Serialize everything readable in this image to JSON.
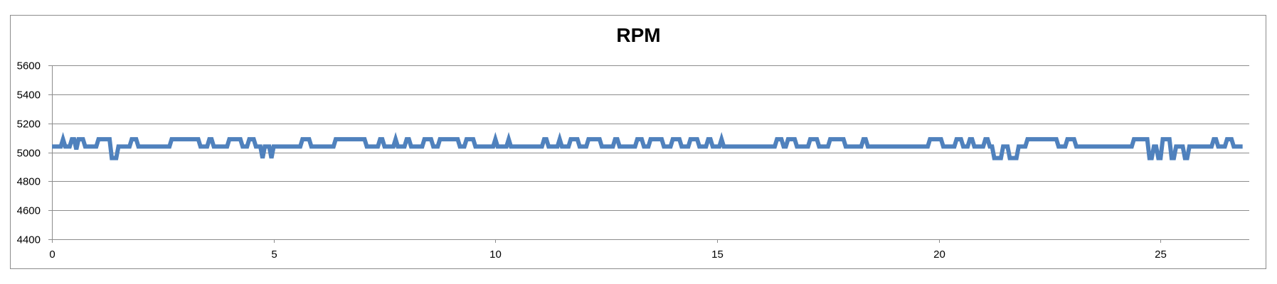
{
  "chart_data": {
    "type": "line",
    "title": "RPM",
    "xlabel": "",
    "ylabel": "",
    "xlim": [
      0,
      27
    ],
    "ylim": [
      4400,
      5600
    ],
    "x_ticks": [
      0,
      5,
      10,
      15,
      20,
      25
    ],
    "y_ticks": [
      4400,
      4600,
      4800,
      5000,
      5200,
      5400,
      5600
    ],
    "grid": "horizontal",
    "legend": "none",
    "series_color": "#4f81bd",
    "step_size": 0.05,
    "series": [
      {
        "segments": [
          [
            0.0,
            0.25,
            5040
          ],
          [
            0.25,
            0.3,
            5090
          ],
          [
            0.3,
            0.45,
            5040
          ],
          [
            0.45,
            0.55,
            5090
          ],
          [
            0.55,
            0.6,
            5020
          ],
          [
            0.6,
            0.75,
            5090
          ],
          [
            0.75,
            1.05,
            5040
          ],
          [
            1.05,
            1.35,
            5090
          ],
          [
            1.35,
            1.5,
            4960
          ],
          [
            1.5,
            1.8,
            5040
          ],
          [
            1.8,
            1.95,
            5090
          ],
          [
            1.95,
            2.7,
            5040
          ],
          [
            2.7,
            3.35,
            5090
          ],
          [
            3.35,
            3.55,
            5040
          ],
          [
            3.55,
            3.65,
            5090
          ],
          [
            3.65,
            4.0,
            5040
          ],
          [
            4.0,
            4.3,
            5090
          ],
          [
            4.3,
            4.45,
            5040
          ],
          [
            4.45,
            4.6,
            5090
          ],
          [
            4.6,
            4.75,
            5040
          ],
          [
            4.75,
            4.8,
            4960
          ],
          [
            4.8,
            4.95,
            5040
          ],
          [
            4.95,
            5.0,
            4960
          ],
          [
            5.0,
            5.65,
            5040
          ],
          [
            5.65,
            5.85,
            5090
          ],
          [
            5.85,
            6.4,
            5040
          ],
          [
            6.4,
            7.1,
            5090
          ],
          [
            7.1,
            7.4,
            5040
          ],
          [
            7.4,
            7.5,
            5090
          ],
          [
            7.5,
            7.75,
            5040
          ],
          [
            7.75,
            7.8,
            5090
          ],
          [
            7.8,
            8.0,
            5040
          ],
          [
            8.0,
            8.1,
            5090
          ],
          [
            8.1,
            8.4,
            5040
          ],
          [
            8.4,
            8.6,
            5090
          ],
          [
            8.6,
            8.75,
            5040
          ],
          [
            8.75,
            9.2,
            5090
          ],
          [
            9.2,
            9.35,
            5040
          ],
          [
            9.35,
            9.55,
            5090
          ],
          [
            9.55,
            10.0,
            5040
          ],
          [
            10.0,
            10.05,
            5090
          ],
          [
            10.05,
            10.3,
            5040
          ],
          [
            10.3,
            10.35,
            5090
          ],
          [
            10.35,
            11.1,
            5040
          ],
          [
            11.1,
            11.2,
            5090
          ],
          [
            11.2,
            11.45,
            5040
          ],
          [
            11.45,
            11.5,
            5090
          ],
          [
            11.5,
            11.7,
            5040
          ],
          [
            11.7,
            11.9,
            5090
          ],
          [
            11.9,
            12.1,
            5040
          ],
          [
            12.1,
            12.4,
            5090
          ],
          [
            12.4,
            12.7,
            5040
          ],
          [
            12.7,
            12.8,
            5090
          ],
          [
            12.8,
            13.2,
            5040
          ],
          [
            13.2,
            13.35,
            5090
          ],
          [
            13.35,
            13.5,
            5040
          ],
          [
            13.5,
            13.8,
            5090
          ],
          [
            13.8,
            14.0,
            5040
          ],
          [
            14.0,
            14.2,
            5090
          ],
          [
            14.2,
            14.4,
            5040
          ],
          [
            14.4,
            14.6,
            5090
          ],
          [
            14.6,
            14.8,
            5040
          ],
          [
            14.8,
            14.9,
            5090
          ],
          [
            14.9,
            15.1,
            5040
          ],
          [
            15.1,
            15.15,
            5090
          ],
          [
            15.15,
            16.35,
            5040
          ],
          [
            16.35,
            16.5,
            5090
          ],
          [
            16.5,
            16.6,
            5040
          ],
          [
            16.6,
            16.8,
            5090
          ],
          [
            16.8,
            17.1,
            5040
          ],
          [
            17.1,
            17.3,
            5090
          ],
          [
            17.3,
            17.55,
            5040
          ],
          [
            17.55,
            17.9,
            5090
          ],
          [
            17.9,
            18.3,
            5040
          ],
          [
            18.3,
            18.4,
            5090
          ],
          [
            18.4,
            19.8,
            5040
          ],
          [
            19.8,
            20.1,
            5090
          ],
          [
            20.1,
            20.4,
            5040
          ],
          [
            20.4,
            20.55,
            5090
          ],
          [
            20.55,
            20.7,
            5040
          ],
          [
            20.7,
            20.8,
            5090
          ],
          [
            20.8,
            21.05,
            5040
          ],
          [
            21.05,
            21.15,
            5090
          ],
          [
            21.15,
            21.25,
            5040
          ],
          [
            21.25,
            21.45,
            4960
          ],
          [
            21.45,
            21.6,
            5040
          ],
          [
            21.6,
            21.8,
            4960
          ],
          [
            21.8,
            22.0,
            5040
          ],
          [
            22.0,
            22.7,
            5090
          ],
          [
            22.7,
            22.9,
            5040
          ],
          [
            22.9,
            23.1,
            5090
          ],
          [
            23.1,
            24.4,
            5040
          ],
          [
            24.4,
            24.75,
            5090
          ],
          [
            24.75,
            24.85,
            4960
          ],
          [
            24.85,
            24.95,
            5040
          ],
          [
            24.95,
            25.05,
            4960
          ],
          [
            25.05,
            25.25,
            5090
          ],
          [
            25.25,
            25.35,
            4960
          ],
          [
            25.35,
            25.55,
            5040
          ],
          [
            25.55,
            25.65,
            4960
          ],
          [
            25.65,
            26.2,
            5040
          ],
          [
            26.2,
            26.3,
            5090
          ],
          [
            26.3,
            26.5,
            5040
          ],
          [
            26.5,
            26.65,
            5090
          ],
          [
            26.65,
            26.85,
            5040
          ]
        ]
      }
    ]
  }
}
